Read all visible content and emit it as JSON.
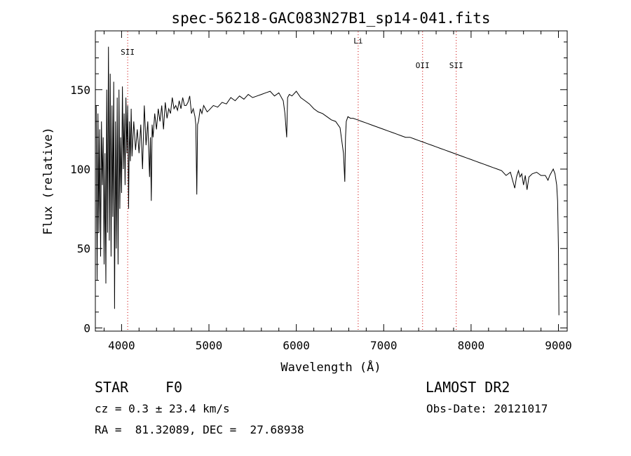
{
  "chart_data": {
    "type": "line",
    "title": "spec-56218-GAC083N27B1_sp14-041.fits",
    "xlabel": "Wavelength (Å)",
    "ylabel": "Flux (relative)",
    "xlim": [
      3700,
      9100
    ],
    "ylim": [
      -2,
      187
    ],
    "x_ticks": [
      4000,
      5000,
      6000,
      7000,
      8000,
      9000
    ],
    "y_ticks": [
      0,
      50,
      100,
      150
    ],
    "grid": false,
    "line_color": "#000000",
    "marker_color": "#cc0000",
    "line_markers": [
      {
        "label": "SII",
        "x": 4070
      },
      {
        "label": "Li",
        "x": 6708
      },
      {
        "label": "OII",
        "x": 7445
      },
      {
        "label": "SII",
        "x": 7830
      }
    ],
    "series": [
      {
        "x": [
          3710,
          3720,
          3730,
          3740,
          3750,
          3760,
          3770,
          3780,
          3790,
          3800,
          3810,
          3820,
          3830,
          3840,
          3850,
          3860,
          3870,
          3880,
          3890,
          3900,
          3910,
          3920,
          3930,
          3940,
          3950,
          3960,
          3970,
          3980,
          3990,
          4000,
          4010,
          4020,
          4030,
          4040,
          4050,
          4060,
          4070,
          4080,
          4090,
          4100,
          4110,
          4120,
          4140,
          4160,
          4180,
          4200,
          4220,
          4240,
          4260,
          4280,
          4300,
          4320,
          4330,
          4340,
          4350,
          4360,
          4380,
          4400,
          4420,
          4440,
          4460,
          4480,
          4500,
          4520,
          4540,
          4560,
          4580,
          4600,
          4620,
          4640,
          4660,
          4680,
          4700,
          4720,
          4740,
          4760,
          4780,
          4800,
          4820,
          4840,
          4850,
          4861,
          4870,
          4880,
          4900,
          4920,
          4940,
          4960,
          4980,
          5000,
          5050,
          5100,
          5150,
          5200,
          5250,
          5300,
          5350,
          5400,
          5450,
          5500,
          5550,
          5600,
          5650,
          5700,
          5750,
          5800,
          5850,
          5870,
          5890,
          5900,
          5920,
          5950,
          6000,
          6050,
          6100,
          6150,
          6200,
          6250,
          6300,
          6350,
          6400,
          6450,
          6500,
          6540,
          6555,
          6563,
          6572,
          6590,
          6620,
          6650,
          6700,
          6750,
          6800,
          6850,
          6900,
          6950,
          7000,
          7050,
          7100,
          7150,
          7200,
          7250,
          7300,
          7350,
          7400,
          7450,
          7500,
          7550,
          7600,
          7650,
          7700,
          7750,
          7800,
          7850,
          7900,
          7950,
          8000,
          8050,
          8100,
          8150,
          8200,
          8250,
          8300,
          8350,
          8400,
          8450,
          8500,
          8520,
          8542,
          8560,
          8580,
          8600,
          8620,
          8640,
          8662,
          8680,
          8700,
          8750,
          8800,
          8850,
          8880,
          8900,
          8920,
          8940,
          8960,
          8980,
          8990,
          9000,
          9005
        ],
        "y": [
          140,
          30,
          135,
          60,
          125,
          45,
          130,
          90,
          120,
          40,
          110,
          28,
          150,
          60,
          177,
          55,
          160,
          45,
          140,
          70,
          155,
          12,
          130,
          50,
          145,
          40,
          150,
          75,
          120,
          85,
          152,
          100,
          135,
          90,
          145,
          110,
          140,
          75,
          130,
          105,
          138,
          108,
          130,
          112,
          125,
          110,
          128,
          100,
          140,
          115,
          130,
          95,
          120,
          80,
          128,
          120,
          135,
          125,
          138,
          130,
          140,
          125,
          142,
          132,
          138,
          135,
          145,
          138,
          140,
          137,
          143,
          138,
          145,
          140,
          140,
          142,
          146,
          135,
          138,
          133,
          128,
          84,
          128,
          130,
          138,
          135,
          140,
          138,
          136,
          137,
          140,
          139,
          142,
          141,
          145,
          143,
          146,
          144,
          147,
          145,
          146,
          147,
          148,
          149,
          146,
          148,
          143,
          135,
          120,
          145,
          147,
          146,
          149,
          145,
          143,
          141,
          138,
          136,
          135,
          133,
          131,
          130,
          126,
          110,
          92,
          120,
          130,
          133,
          132,
          132,
          131,
          130,
          129,
          128,
          127,
          126,
          125,
          124,
          123,
          122,
          121,
          120,
          120,
          119,
          118,
          117,
          116,
          115,
          114,
          113,
          112,
          111,
          110,
          109,
          108,
          107,
          106,
          105,
          104,
          103,
          102,
          101,
          100,
          99,
          96,
          98,
          88,
          95,
          99,
          95,
          97,
          90,
          96,
          87,
          95,
          96,
          97,
          98,
          96,
          96,
          93,
          96,
          98,
          100,
          97,
          90,
          80,
          50,
          8
        ]
      }
    ]
  },
  "info": {
    "object_type": "STAR",
    "spectral_class": "F0",
    "survey": "LAMOST DR2",
    "cz": "cz = 0.3 ± 23.4 km/s",
    "obs_date": "Obs-Date: 20121017",
    "radec": "RA =  81.32089, DEC =  27.68938"
  }
}
